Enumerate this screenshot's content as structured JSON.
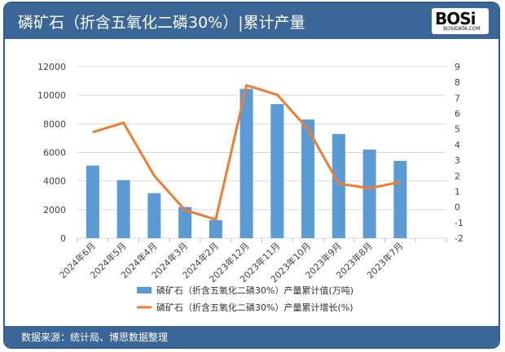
{
  "header": {
    "title": "磷矿石（折含五氧化二磷30%）|累计产量",
    "logo": "BOSI BOSIDATA.COM"
  },
  "footer": {
    "source": "数据来源：统计局、博思数据整理"
  },
  "colors": {
    "bar": "#5b9bd5",
    "line": "#ed7d31",
    "header": "#3b6698"
  },
  "chart_data": {
    "type": "bar+line",
    "categories": [
      "2024年6月",
      "2024年5月",
      "2024年4月",
      "2024年3月",
      "2024年2月",
      "2023年12月",
      "2023年11月",
      "2023年10月",
      "2023年9月",
      "2023年8月",
      "2023年7月"
    ],
    "series": [
      {
        "name": "磷矿石（折含五氧化二磷30%）产量累计值(万吨)",
        "type": "bar",
        "axis": "left",
        "values": [
          5080,
          4060,
          3150,
          2180,
          1270,
          10450,
          9380,
          8300,
          7290,
          6200,
          5410
        ]
      },
      {
        "name": "磷矿石（折含五氧化二磷30%）产量累计增长(%)",
        "type": "line",
        "axis": "right",
        "values": [
          4.8,
          5.4,
          2.0,
          -0.2,
          -0.8,
          7.8,
          7.2,
          5.0,
          1.5,
          1.2,
          1.6
        ]
      }
    ],
    "ylim_left": [
      0,
      12000
    ],
    "yticks_left": [
      0,
      2000,
      4000,
      6000,
      8000,
      10000,
      12000
    ],
    "ylim_right": [
      -2,
      9
    ],
    "yticks_right": [
      -2,
      -1,
      0,
      1,
      2,
      3,
      4,
      5,
      6,
      7,
      8,
      9
    ],
    "grid": true,
    "legend": "bottom"
  }
}
